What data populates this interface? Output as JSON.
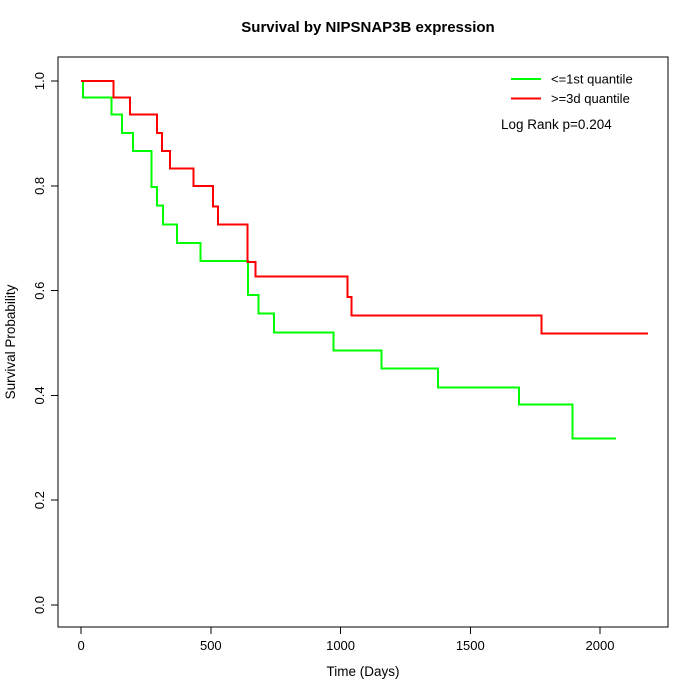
{
  "title": "Survival by NIPSNAP3B expression",
  "colors": {
    "background": "#FFFFFF",
    "axis": "#000000",
    "text": "#000000",
    "low_quantile": "#00FF00",
    "high_quantile": "#FF0000"
  },
  "chart_data": {
    "type": "line",
    "variant": "kaplan_meier_step",
    "title": "Survival by NIPSNAP3B expression",
    "xlabel": "Time (Days)",
    "ylabel": "Survival Probability",
    "x_tick_values": [
      0,
      500,
      1000,
      1500,
      2000
    ],
    "x_tick_labels": [
      "0",
      "500",
      "1000",
      "1500",
      "2000"
    ],
    "y_tick_values": [
      0.0,
      0.2,
      0.4,
      0.6,
      0.8,
      1.0
    ],
    "y_tick_labels": [
      "0.0",
      "0.2",
      "0.4",
      "0.6",
      "0.8",
      "1.0"
    ],
    "xlim": [
      -89,
      2262
    ],
    "ylim": [
      -0.042,
      1.046
    ],
    "grid": false,
    "legend": {
      "position": "top-right",
      "entries": [
        {
          "label": "<=1st quantile",
          "color": "#00FF00"
        },
        {
          "label": ">=3d quantile",
          "color": "#FF0000"
        }
      ]
    },
    "annotation": "Log Rank p=0.204",
    "series": [
      {
        "name": "<=1st quantile",
        "color": "#00FF00",
        "steps": [
          [
            0,
            1.0
          ],
          [
            8,
            0.969
          ],
          [
            118,
            0.936
          ],
          [
            157,
            0.901
          ],
          [
            201,
            0.867
          ],
          [
            271,
            0.798
          ],
          [
            293,
            0.763
          ],
          [
            315,
            0.726
          ],
          [
            369,
            0.691
          ],
          [
            461,
            0.657
          ],
          [
            644,
            0.592
          ],
          [
            683,
            0.556
          ],
          [
            743,
            0.52
          ],
          [
            972,
            0.486
          ],
          [
            1158,
            0.451
          ],
          [
            1376,
            0.415
          ],
          [
            1688,
            0.383
          ],
          [
            1894,
            0.318
          ]
        ],
        "end_time": 2061
      },
      {
        "name": ">=3d quantile",
        "color": "#FF0000",
        "steps": [
          [
            0,
            1.0
          ],
          [
            124,
            0.969
          ],
          [
            189,
            0.936
          ],
          [
            292,
            0.901
          ],
          [
            311,
            0.867
          ],
          [
            342,
            0.833
          ],
          [
            433,
            0.8
          ],
          [
            508,
            0.761
          ],
          [
            527,
            0.726
          ],
          [
            642,
            0.655
          ],
          [
            673,
            0.627
          ],
          [
            1026,
            0.588
          ],
          [
            1043,
            0.553
          ],
          [
            1775,
            0.518
          ]
        ],
        "end_time": 2185
      }
    ]
  }
}
